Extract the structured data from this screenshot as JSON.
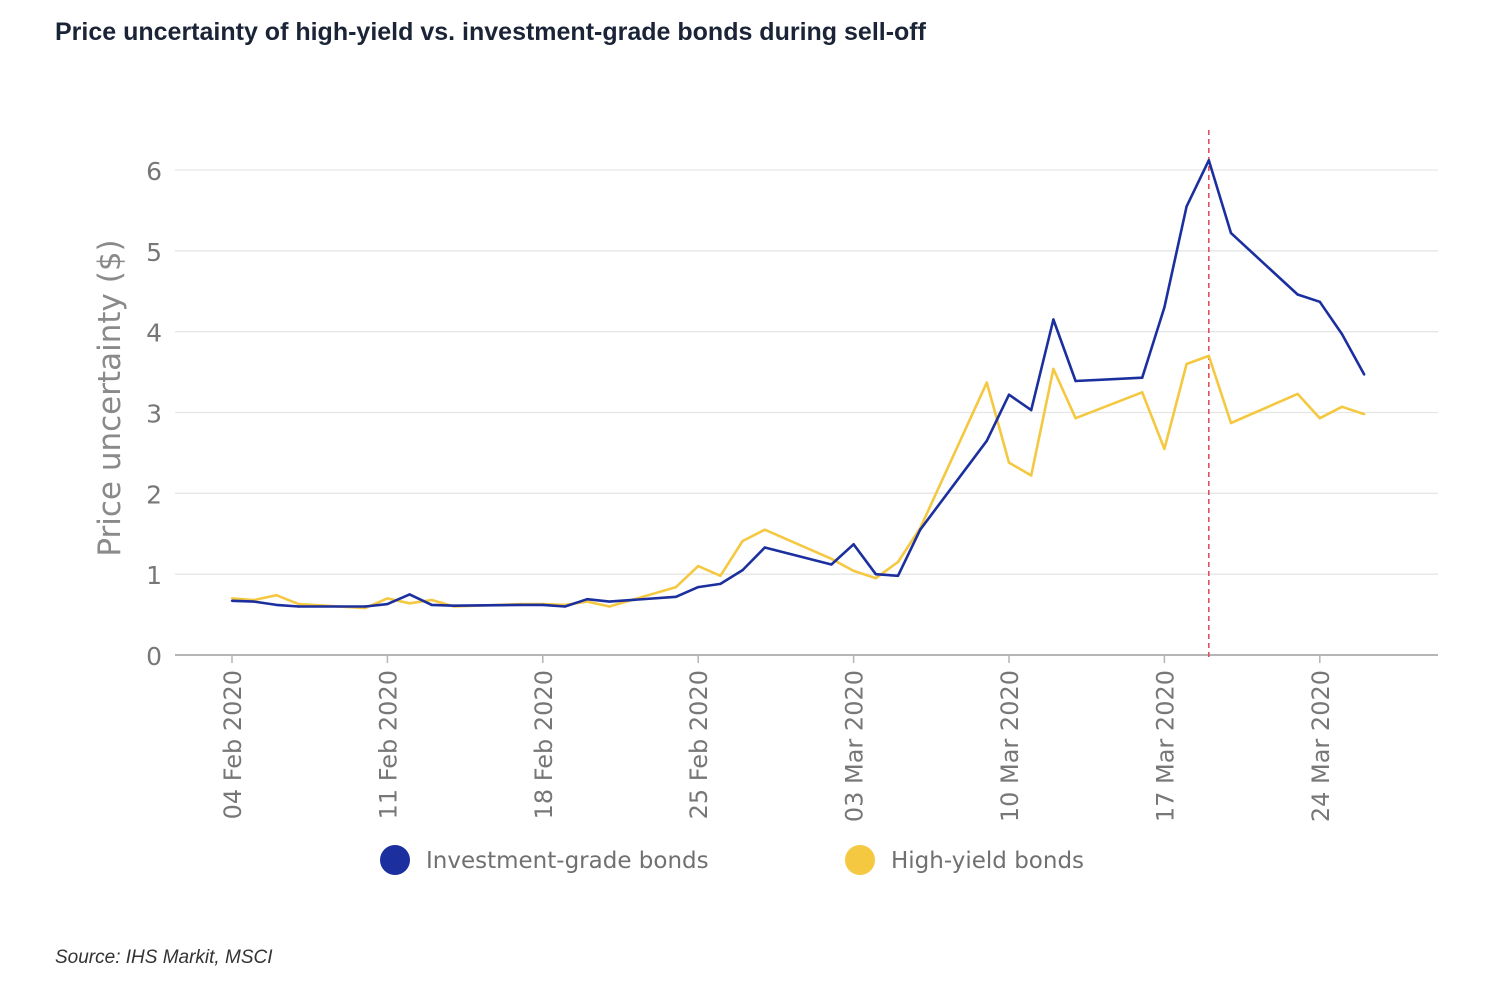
{
  "title": "Price uncertainty of high-yield vs. investment-grade bonds during sell-off",
  "source": "Source: IHS Markit, MSCI",
  "chart_data": {
    "type": "line",
    "ylabel": "Price uncertainty ($)",
    "xlabel": "",
    "ylim": [
      0,
      6.4
    ],
    "yticks": [
      0,
      1,
      2,
      3,
      4,
      5,
      6
    ],
    "xlim": [
      "2020-02-01",
      "2020-03-31"
    ],
    "xticks": [
      {
        "date": "2020-02-04",
        "label": "04 Feb 2020"
      },
      {
        "date": "2020-02-11",
        "label": "11 Feb 2020"
      },
      {
        "date": "2020-02-18",
        "label": "18 Feb 2020"
      },
      {
        "date": "2020-02-25",
        "label": "25 Feb 2020"
      },
      {
        "date": "2020-03-03",
        "label": "03 Mar 2020"
      },
      {
        "date": "2020-03-10",
        "label": "10 Mar 2020"
      },
      {
        "date": "2020-03-17",
        "label": "17 Mar 2020"
      },
      {
        "date": "2020-03-24",
        "label": "24 Mar 2020"
      }
    ],
    "grid": "horizontal",
    "legend_position": "bottom",
    "vertical_marker": {
      "date": "2020-03-19",
      "style": "dashed",
      "color": "#e0505a"
    },
    "series": [
      {
        "name": "Investment-grade bonds",
        "color": "#1b2f9e",
        "points": [
          [
            "2020-02-04",
            0.67
          ],
          [
            "2020-02-05",
            0.66
          ],
          [
            "2020-02-06",
            0.62
          ],
          [
            "2020-02-07",
            0.6
          ],
          [
            "2020-02-10",
            0.6
          ],
          [
            "2020-02-11",
            0.63
          ],
          [
            "2020-02-12",
            0.75
          ],
          [
            "2020-02-13",
            0.62
          ],
          [
            "2020-02-14",
            0.61
          ],
          [
            "2020-02-17",
            0.62
          ],
          [
            "2020-02-18",
            0.62
          ],
          [
            "2020-02-19",
            0.6
          ],
          [
            "2020-02-20",
            0.69
          ],
          [
            "2020-02-21",
            0.66
          ],
          [
            "2020-02-24",
            0.72
          ],
          [
            "2020-02-25",
            0.84
          ],
          [
            "2020-02-26",
            0.88
          ],
          [
            "2020-02-27",
            1.05
          ],
          [
            "2020-02-28",
            1.33
          ],
          [
            "2020-03-02",
            1.12
          ],
          [
            "2020-03-03",
            1.37
          ],
          [
            "2020-03-04",
            1.0
          ],
          [
            "2020-03-05",
            0.98
          ],
          [
            "2020-03-06",
            1.55
          ],
          [
            "2020-03-09",
            2.65
          ],
          [
            "2020-03-10",
            3.22
          ],
          [
            "2020-03-11",
            3.03
          ],
          [
            "2020-03-12",
            4.15
          ],
          [
            "2020-03-13",
            3.39
          ],
          [
            "2020-03-16",
            3.43
          ],
          [
            "2020-03-17",
            4.3
          ],
          [
            "2020-03-18",
            5.55
          ],
          [
            "2020-03-19",
            6.12
          ],
          [
            "2020-03-20",
            5.22
          ],
          [
            "2020-03-23",
            4.46
          ],
          [
            "2020-03-24",
            4.37
          ],
          [
            "2020-03-25",
            3.97
          ],
          [
            "2020-03-26",
            3.47
          ]
        ]
      },
      {
        "name": "High-yield bonds",
        "color": "#f5c842",
        "points": [
          [
            "2020-02-04",
            0.7
          ],
          [
            "2020-02-05",
            0.68
          ],
          [
            "2020-02-06",
            0.74
          ],
          [
            "2020-02-07",
            0.63
          ],
          [
            "2020-02-10",
            0.58
          ],
          [
            "2020-02-11",
            0.7
          ],
          [
            "2020-02-12",
            0.64
          ],
          [
            "2020-02-13",
            0.68
          ],
          [
            "2020-02-14",
            0.6
          ],
          [
            "2020-02-17",
            0.63
          ],
          [
            "2020-02-18",
            0.63
          ],
          [
            "2020-02-19",
            0.62
          ],
          [
            "2020-02-20",
            0.66
          ],
          [
            "2020-02-21",
            0.6
          ],
          [
            "2020-02-24",
            0.84
          ],
          [
            "2020-02-25",
            1.1
          ],
          [
            "2020-02-26",
            0.98
          ],
          [
            "2020-02-27",
            1.41
          ],
          [
            "2020-02-28",
            1.55
          ],
          [
            "2020-03-02",
            1.19
          ],
          [
            "2020-03-03",
            1.04
          ],
          [
            "2020-03-04",
            0.95
          ],
          [
            "2020-03-05",
            1.15
          ],
          [
            "2020-03-06",
            1.57
          ],
          [
            "2020-03-09",
            3.37
          ],
          [
            "2020-03-10",
            2.38
          ],
          [
            "2020-03-11",
            2.22
          ],
          [
            "2020-03-12",
            3.54
          ],
          [
            "2020-03-13",
            2.93
          ],
          [
            "2020-03-16",
            3.25
          ],
          [
            "2020-03-17",
            2.55
          ],
          [
            "2020-03-18",
            3.6
          ],
          [
            "2020-03-19",
            3.7
          ],
          [
            "2020-03-20",
            2.87
          ],
          [
            "2020-03-23",
            3.23
          ],
          [
            "2020-03-24",
            2.93
          ],
          [
            "2020-03-25",
            3.07
          ],
          [
            "2020-03-26",
            2.98
          ]
        ]
      }
    ]
  }
}
